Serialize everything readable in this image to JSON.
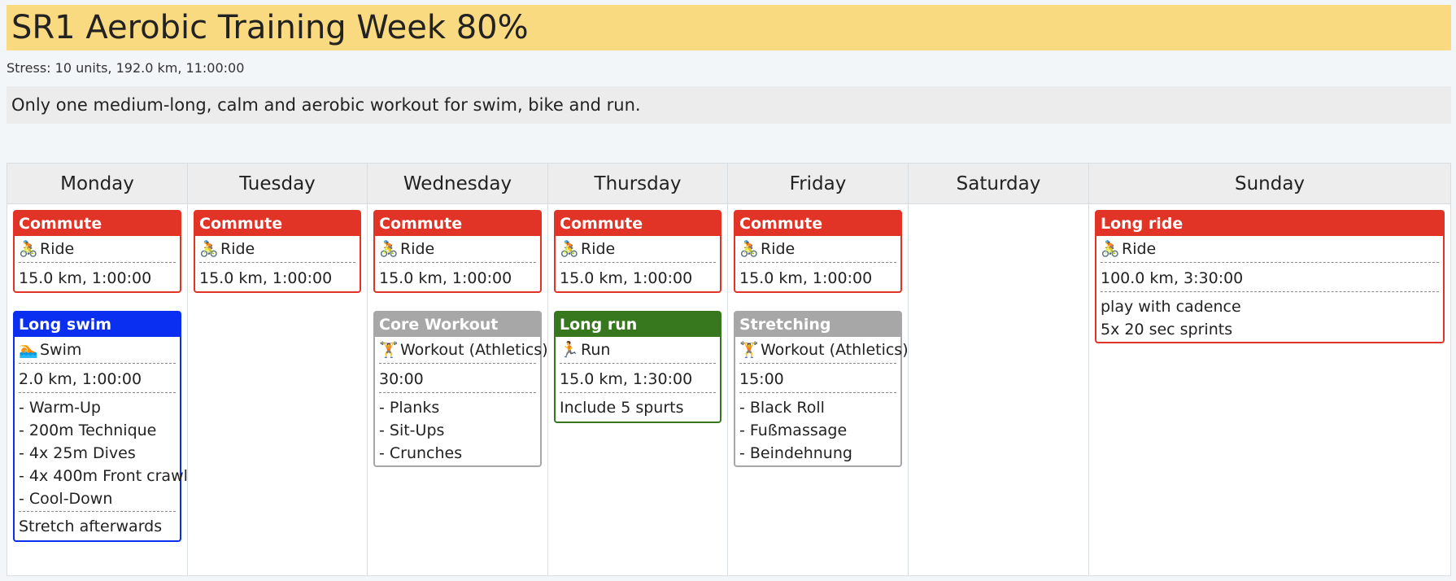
{
  "header": {
    "title": "SR1 Aerobic Training Week 80%",
    "stress": "Stress: 10 units, 192.0 km, 11:00:00",
    "description": "Only one medium-long, calm and aerobic workout for swim, bike and run."
  },
  "colors": {
    "ride": "#e13326",
    "swim": "#0a2ff0",
    "run": "#37781f",
    "workout": "#a7a7a7"
  },
  "days": [
    {
      "name": "Monday",
      "workouts": [
        {
          "title": "Commute",
          "kind": "ride",
          "icon": "cyclist-icon",
          "icon_glyph": "🚴",
          "type": "Ride",
          "stats": "15.0 km, 1:00:00",
          "lines": [],
          "note": ""
        },
        {
          "title": "Long swim",
          "kind": "swim",
          "icon": "swimmer-icon",
          "icon_glyph": "🏊",
          "type": "Swim",
          "stats": "2.0 km, 1:00:00",
          "lines": [
            "- Warm-Up",
            "- 200m Technique",
            "- 4x 25m Dives",
            "- 4x 400m Front crawl",
            "- Cool-Down"
          ],
          "note": "Stretch afterwards"
        }
      ]
    },
    {
      "name": "Tuesday",
      "workouts": [
        {
          "title": "Commute",
          "kind": "ride",
          "icon": "cyclist-icon",
          "icon_glyph": "🚴",
          "type": "Ride",
          "stats": "15.0 km, 1:00:00",
          "lines": [],
          "note": ""
        }
      ]
    },
    {
      "name": "Wednesday",
      "workouts": [
        {
          "title": "Commute",
          "kind": "ride",
          "icon": "cyclist-icon",
          "icon_glyph": "🚴",
          "type": "Ride",
          "stats": "15.0 km, 1:00:00",
          "lines": [],
          "note": ""
        },
        {
          "title": "Core Workout",
          "kind": "workout",
          "icon": "weightlifter-icon",
          "icon_glyph": "🏋",
          "type": "Workout (Athletics)",
          "stats": "30:00",
          "lines": [
            "- Planks",
            "- Sit-Ups",
            "- Crunches"
          ],
          "note": ""
        }
      ]
    },
    {
      "name": "Thursday",
      "workouts": [
        {
          "title": "Commute",
          "kind": "ride",
          "icon": "cyclist-icon",
          "icon_glyph": "🚴",
          "type": "Ride",
          "stats": "15.0 km, 1:00:00",
          "lines": [],
          "note": ""
        },
        {
          "title": "Long run",
          "kind": "run",
          "icon": "runner-icon",
          "icon_glyph": "🏃",
          "type": "Run",
          "stats": "15.0 km, 1:30:00",
          "lines": [],
          "note": "Include 5 spurts"
        }
      ]
    },
    {
      "name": "Friday",
      "workouts": [
        {
          "title": "Commute",
          "kind": "ride",
          "icon": "cyclist-icon",
          "icon_glyph": "🚴",
          "type": "Ride",
          "stats": "15.0 km, 1:00:00",
          "lines": [],
          "note": ""
        },
        {
          "title": "Stretching",
          "kind": "workout",
          "icon": "weightlifter-icon",
          "icon_glyph": "🏋",
          "type": "Workout (Athletics)",
          "stats": "15:00",
          "lines": [
            "- Black Roll",
            "- Fußmassage",
            "- Beindehnung"
          ],
          "note": ""
        }
      ]
    },
    {
      "name": "Saturday",
      "workouts": []
    },
    {
      "name": "Sunday",
      "workouts": [
        {
          "title": "Long ride",
          "kind": "ride",
          "icon": "cyclist-icon",
          "icon_glyph": "🚴",
          "type": "Ride",
          "stats": "100.0 km, 3:30:00",
          "lines": [
            "play with cadence",
            "5x 20 sec sprints"
          ],
          "note": ""
        }
      ]
    }
  ]
}
